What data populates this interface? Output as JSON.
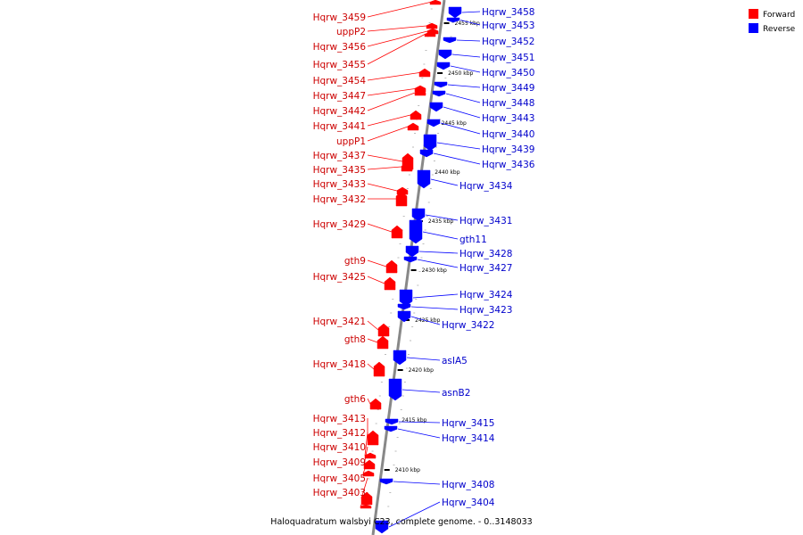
{
  "caption": "Haloquadratum walsbyi C23, complete genome. - 0..3148033",
  "colors": {
    "forward": "#ff0000",
    "reverse": "#0000ff",
    "backbone": "#888888"
  },
  "legend": [
    {
      "label": "Forward",
      "color": "#ff0000"
    },
    {
      "label": "Reverse",
      "color": "#0000ff"
    }
  ],
  "scale_labels": [
    "2455 kbp",
    "2450 kbp",
    "2445 kbp",
    "2440 kbp",
    "2435 kbp",
    "2430 kbp",
    "2425 kbp",
    "2420 kbp",
    "2415 kbp",
    "2410 kbp"
  ],
  "forward_labels": [
    "Hqrw_3459",
    "uppP2",
    "Hqrw_3456",
    "Hqrw_3455",
    "Hqrw_3454",
    "Hqrw_3447",
    "Hqrw_3442",
    "Hqrw_3441",
    "uppP1",
    "Hqrw_3437",
    "Hqrw_3435",
    "Hqrw_3433",
    "Hqrw_3432",
    "Hqrw_3429",
    "gth9",
    "Hqrw_3425",
    "Hqrw_3421",
    "gth8",
    "Hqrw_3418",
    "gth6",
    "Hqrw_3413",
    "Hqrw_3412",
    "Hqrw_3410",
    "Hqrw_3409",
    "Hqrw_3405",
    "Hqrw_3403"
  ],
  "reverse_labels": [
    "Hqrw_3458",
    "Hqrw_3453",
    "Hqrw_3452",
    "Hqrw_3451",
    "Hqrw_3450",
    "Hqrw_3449",
    "Hqrw_3448",
    "Hqrw_3443",
    "Hqrw_3440",
    "Hqrw_3439",
    "Hqrw_3436",
    "Hqrw_3434",
    "Hqrw_3431",
    "gth11",
    "Hqrw_3428",
    "Hqrw_3427",
    "Hqrw_3424",
    "Hqrw_3423",
    "Hqrw_3422",
    "asIA5",
    "asnB2",
    "Hqrw_3415",
    "Hqrw_3414",
    "Hqrw_3408",
    "Hqrw_3404"
  ]
}
